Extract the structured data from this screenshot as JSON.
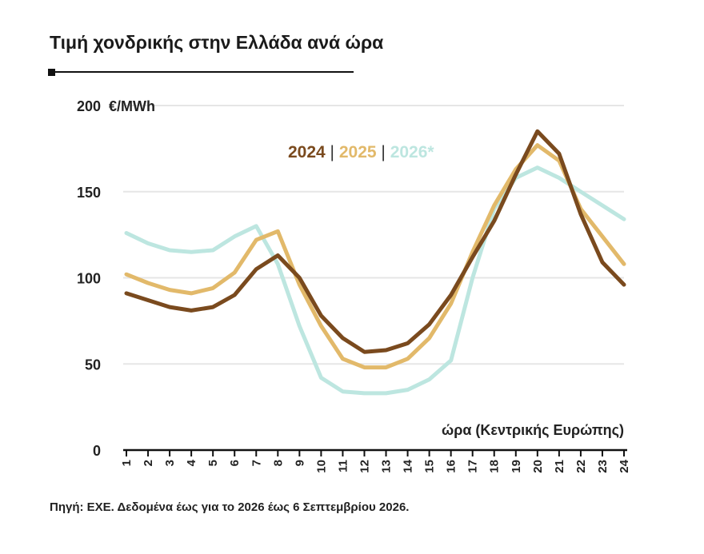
{
  "title": "Τιμή χονδρικής στην Ελλάδα ανά ώρα",
  "source": "Πηγή: ΕΧΕ. Δεδομένα έως για το 2026 έως 6 Σεπτεμβρίου 2026.",
  "chart_data": {
    "type": "line",
    "unit_label": "€/MWh",
    "xlabel": "ώρα (Κεντρικής Ευρώπης)",
    "ylabel": "",
    "x": [
      "1",
      "2",
      "3",
      "4",
      "5",
      "6",
      "7",
      "8",
      "9",
      "10",
      "11",
      "12",
      "13",
      "14",
      "15",
      "16",
      "17",
      "18",
      "19",
      "20",
      "21",
      "22",
      "23",
      "24"
    ],
    "ylim": [
      0,
      200
    ],
    "yticks": [
      0,
      50,
      100,
      150,
      200
    ],
    "grid": true,
    "legend_position": "top-right",
    "legend_separator": "|",
    "series": [
      {
        "name": "2024",
        "color": "#7a4a1e",
        "values": [
          91,
          87,
          83,
          81,
          83,
          90,
          105,
          113,
          100,
          78,
          65,
          57,
          58,
          62,
          73,
          90,
          112,
          133,
          160,
          185,
          172,
          137,
          109,
          96
        ]
      },
      {
        "name": "2025",
        "color": "#e2b96a",
        "values": [
          102,
          97,
          93,
          91,
          94,
          103,
          122,
          127,
          96,
          72,
          53,
          48,
          48,
          53,
          65,
          85,
          115,
          142,
          163,
          177,
          168,
          140,
          124,
          108
        ]
      },
      {
        "name": "2026*",
        "color": "#bde6e0",
        "values": [
          126,
          120,
          116,
          115,
          116,
          124,
          130,
          108,
          72,
          42,
          34,
          33,
          33,
          35,
          41,
          52,
          100,
          140,
          158,
          164,
          158,
          150,
          142,
          134
        ]
      }
    ]
  }
}
